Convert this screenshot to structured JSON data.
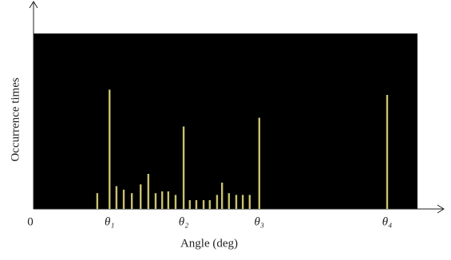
{
  "chart_data": {
    "type": "bar",
    "xlabel": "Angle (deg)",
    "ylabel": "Occurrence times",
    "xlim": [
      0,
      100
    ],
    "ylim": [
      0,
      100
    ],
    "xticks": [
      0,
      {
        "value": 19.8,
        "label": "θ₁"
      },
      {
        "value": 39.1,
        "label": "θ₂"
      },
      {
        "value": 58.8,
        "label": "θ₃"
      },
      {
        "value": 92.1,
        "label": "θ₄"
      }
    ],
    "x": [
      16.6,
      19.8,
      21.6,
      23.5,
      25.6,
      27.9,
      29.9,
      31.8,
      33.5,
      35.1,
      37.0,
      39.1,
      40.7,
      42.4,
      44.3,
      45.9,
      47.8,
      49.1,
      50.9,
      52.8,
      54.5,
      56.3,
      58.8,
      92.1
    ],
    "values": [
      9,
      68,
      13,
      11,
      9,
      14,
      20,
      9,
      10,
      10,
      8,
      47,
      5,
      5,
      5,
      5,
      8,
      15,
      9,
      8,
      8,
      8,
      52,
      65
    ],
    "color": "#c9c26e",
    "background": "#000000"
  }
}
